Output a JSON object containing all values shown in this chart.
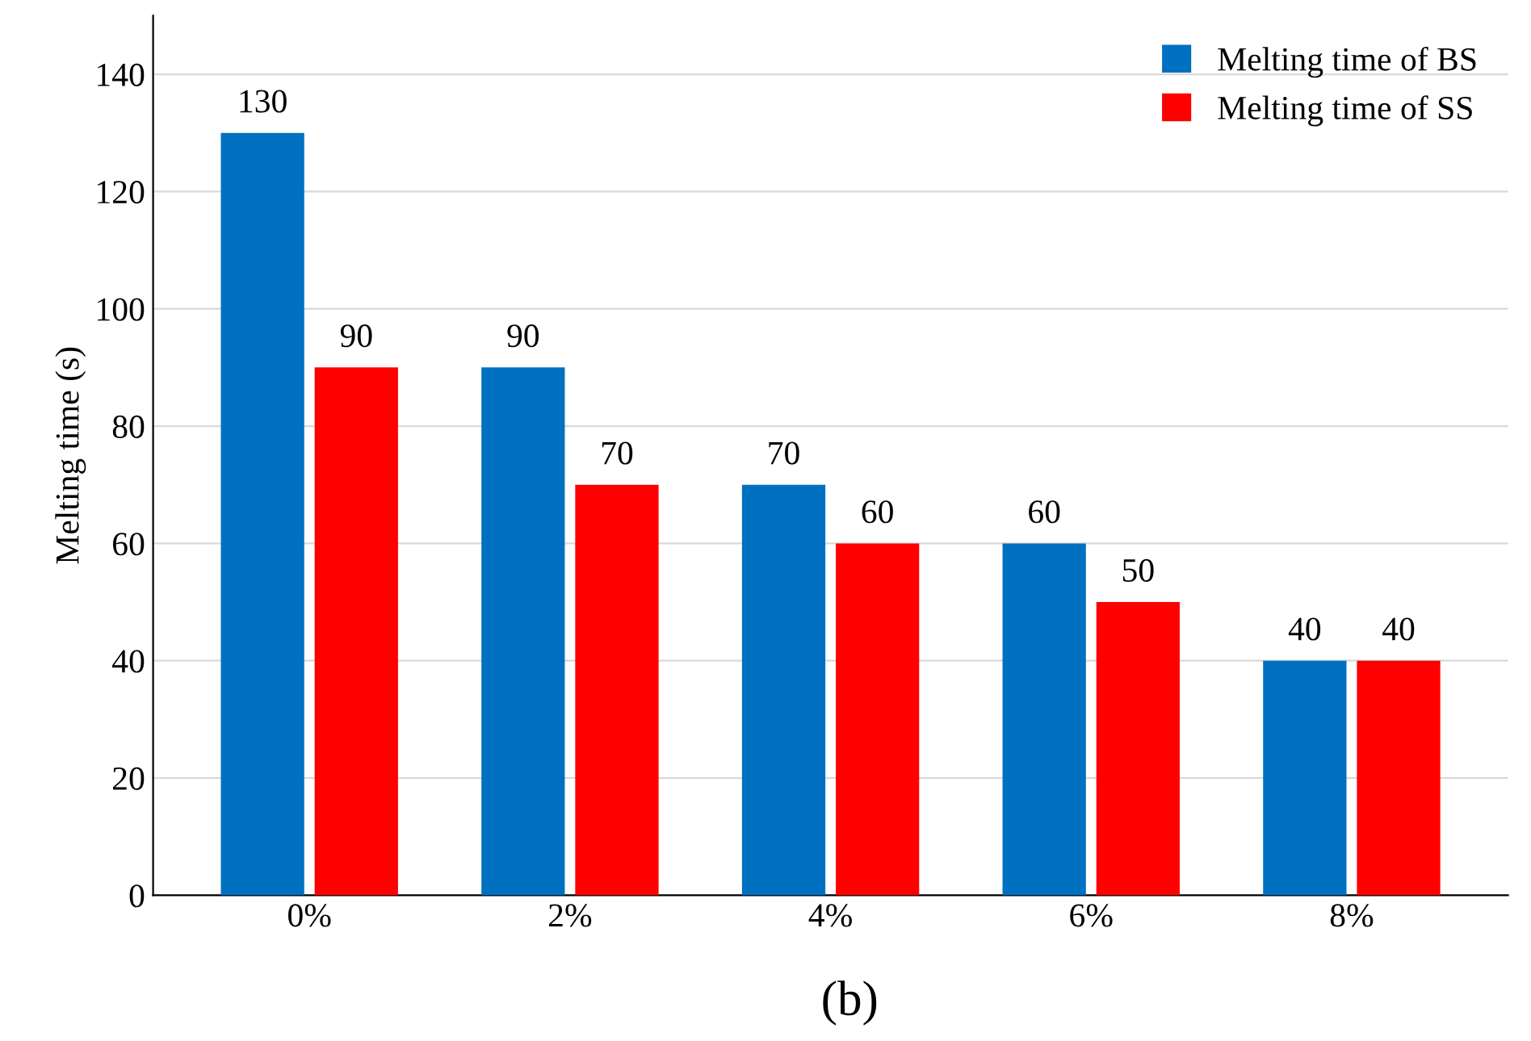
{
  "chart_data": {
    "type": "bar",
    "ylabel": "Melting time (s)",
    "categories": [
      "0%",
      "2%",
      "4%",
      "6%",
      "8%"
    ],
    "series": [
      {
        "name": "Melting time of BS",
        "color": "#0070c0",
        "values": [
          130,
          90,
          70,
          60,
          40
        ]
      },
      {
        "name": "Melting time of SS",
        "color": "#ff0000",
        "values": [
          90,
          70,
          60,
          50,
          40
        ]
      }
    ],
    "ylim": [
      0,
      150
    ],
    "yticks": [
      0,
      20,
      40,
      60,
      80,
      100,
      120,
      140
    ],
    "grid": "y",
    "legend": "top right",
    "data_labels": true,
    "annotations": [
      "(b)"
    ]
  }
}
